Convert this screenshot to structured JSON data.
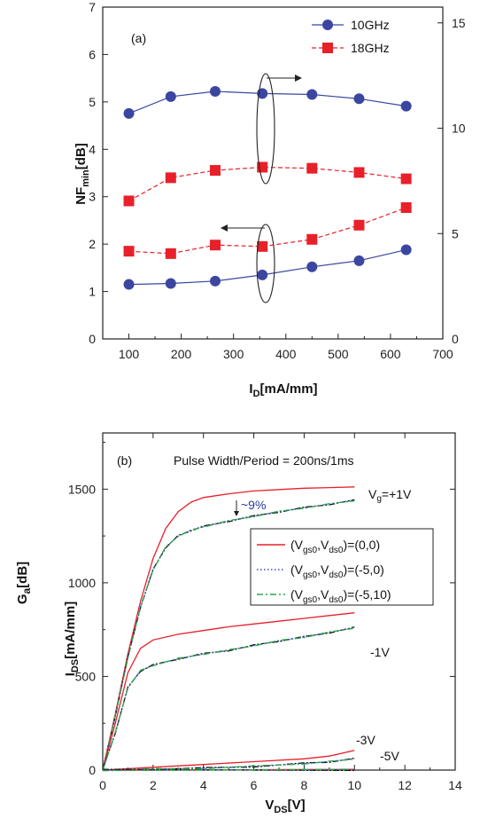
{
  "chart_data": [
    {
      "type": "scatter",
      "panel_label": "(a)",
      "xlabel": "I",
      "xlabel_sub": "D",
      "xlabel_unit": "[mA/mm]",
      "ylabel": "NF",
      "ylabel_sub": "min",
      "ylabel_unit": "[dB]",
      "xlim": [
        50,
        700
      ],
      "ylim": [
        0,
        7
      ],
      "y2lim": [
        0,
        15.75
      ],
      "x_ticks": [
        100,
        200,
        300,
        400,
        500,
        600,
        700
      ],
      "y_ticks": [
        0,
        1,
        2,
        3,
        4,
        5,
        6,
        7
      ],
      "y2_ticks": [
        0,
        5,
        10,
        15
      ],
      "grid": false,
      "legend_position": "top-right",
      "series": [
        {
          "name": "10GHz",
          "axis": "right",
          "color": "#3b46a0",
          "marker": "circle",
          "line": "solid",
          "x": [
            100,
            180,
            265,
            355,
            450,
            540,
            630
          ],
          "y": [
            10.7,
            11.5,
            11.75,
            11.65,
            11.6,
            11.4,
            11.05
          ]
        },
        {
          "name": "18GHz",
          "axis": "right",
          "color": "#e8202a",
          "marker": "square",
          "line": "dashed",
          "x": [
            100,
            180,
            265,
            355,
            450,
            540,
            630
          ],
          "y": [
            6.55,
            7.65,
            8.0,
            8.15,
            8.1,
            7.9,
            7.6
          ]
        },
        {
          "name": "10GHz",
          "axis": "left",
          "color": "#3b46a0",
          "marker": "circle",
          "line": "solid",
          "x": [
            100,
            180,
            265,
            355,
            450,
            540,
            630
          ],
          "y": [
            1.15,
            1.17,
            1.22,
            1.35,
            1.52,
            1.65,
            1.88
          ]
        },
        {
          "name": "18GHz",
          "axis": "left",
          "color": "#e8202a",
          "marker": "square",
          "line": "dashed",
          "x": [
            100,
            180,
            265,
            355,
            450,
            540,
            630
          ],
          "y": [
            1.85,
            1.8,
            1.98,
            1.95,
            2.1,
            2.4,
            2.77
          ]
        }
      ]
    },
    {
      "type": "line",
      "panel_label": "(b)",
      "title": "Pulse Width/Period = 200ns/1ms",
      "xlabel": "V",
      "xlabel_sub": "DS",
      "xlabel_unit": "[V]",
      "ylabel": "I",
      "ylabel_sub": "DS",
      "ylabel_unit": "[mA/mm]",
      "ylabel_overlay": "G",
      "ylabel_overlay_sub": "a",
      "ylabel_overlay_unit": "[dB]",
      "xlim": [
        0,
        14
      ],
      "ylim": [
        0,
        1800
      ],
      "x_ticks": [
        0,
        2,
        4,
        6,
        8,
        10,
        12,
        14
      ],
      "y_ticks": [
        0,
        500,
        1000,
        1500
      ],
      "grid": false,
      "legend_position": "center-right",
      "legend": [
        {
          "label": "(V",
          "sub1": "gs0",
          "mid": ",V",
          "sub2": "ds0",
          "end": ")=(0,0)",
          "color": "#e8202a",
          "dash": "solid"
        },
        {
          "label": "(V",
          "sub1": "gs0",
          "mid": ",V",
          "sub2": "ds0",
          "end": ")=(-5,0)",
          "color": "#3b46c8",
          "dash": "dotted"
        },
        {
          "label": "(V",
          "sub1": "gs0",
          "mid": ",V",
          "sub2": "ds0",
          "end": ")=(-5,10)",
          "color": "#2aa84a",
          "dash": "dashdot"
        }
      ],
      "annotations": {
        "vg_top_prefix": "V",
        "vg_top_sub": "g",
        "vg_top_suffix": "=+1V",
        "vg_m1": "-1V",
        "vg_m3": "-3V",
        "vg_m5": "-5V",
        "drop": "~9%"
      },
      "curves": [
        {
          "vg": "+1V",
          "state": "(0,0)",
          "x": [
            0,
            0.5,
            1,
            1.5,
            2,
            2.5,
            3,
            3.5,
            4,
            5,
            6,
            7,
            8,
            9,
            10
          ],
          "y": [
            0,
            300,
            620,
            900,
            1130,
            1290,
            1380,
            1430,
            1455,
            1475,
            1490,
            1498,
            1505,
            1508,
            1512
          ]
        },
        {
          "vg": "+1V",
          "state": "pulsed",
          "x": [
            0,
            0.5,
            1,
            1.5,
            2,
            2.5,
            3,
            3.5,
            4,
            5,
            6,
            7,
            8,
            9,
            10
          ],
          "y": [
            0,
            290,
            600,
            870,
            1070,
            1190,
            1250,
            1280,
            1300,
            1330,
            1355,
            1380,
            1400,
            1420,
            1440
          ]
        },
        {
          "vg": "-1V",
          "state": "(0,0)",
          "x": [
            0,
            0.5,
            1,
            1.5,
            2,
            3,
            4,
            5,
            6,
            7,
            8,
            9,
            10
          ],
          "y": [
            0,
            250,
            520,
            650,
            695,
            725,
            745,
            765,
            780,
            795,
            810,
            825,
            840
          ]
        },
        {
          "vg": "-1V",
          "state": "pulsed",
          "x": [
            0,
            0.5,
            1,
            1.5,
            2,
            3,
            4,
            5,
            6,
            7,
            8,
            9,
            10
          ],
          "y": [
            0,
            200,
            440,
            530,
            560,
            595,
            620,
            640,
            665,
            690,
            710,
            735,
            760
          ]
        },
        {
          "vg": "-3V",
          "state": "(0,0)",
          "x": [
            0,
            2,
            4,
            6,
            8,
            9,
            10
          ],
          "y": [
            0,
            15,
            30,
            45,
            60,
            75,
            105
          ]
        },
        {
          "vg": "-3V",
          "state": "pulsed",
          "x": [
            0,
            2,
            4,
            6,
            8,
            9,
            10
          ],
          "y": [
            0,
            5,
            10,
            20,
            35,
            45,
            60
          ]
        },
        {
          "vg": "-5V",
          "state": "(0,0)",
          "x": [
            0,
            10
          ],
          "y": [
            0,
            4
          ]
        },
        {
          "vg": "-5V",
          "state": "pulsed",
          "x": [
            0,
            10
          ],
          "y": [
            0,
            2
          ]
        }
      ]
    }
  ]
}
